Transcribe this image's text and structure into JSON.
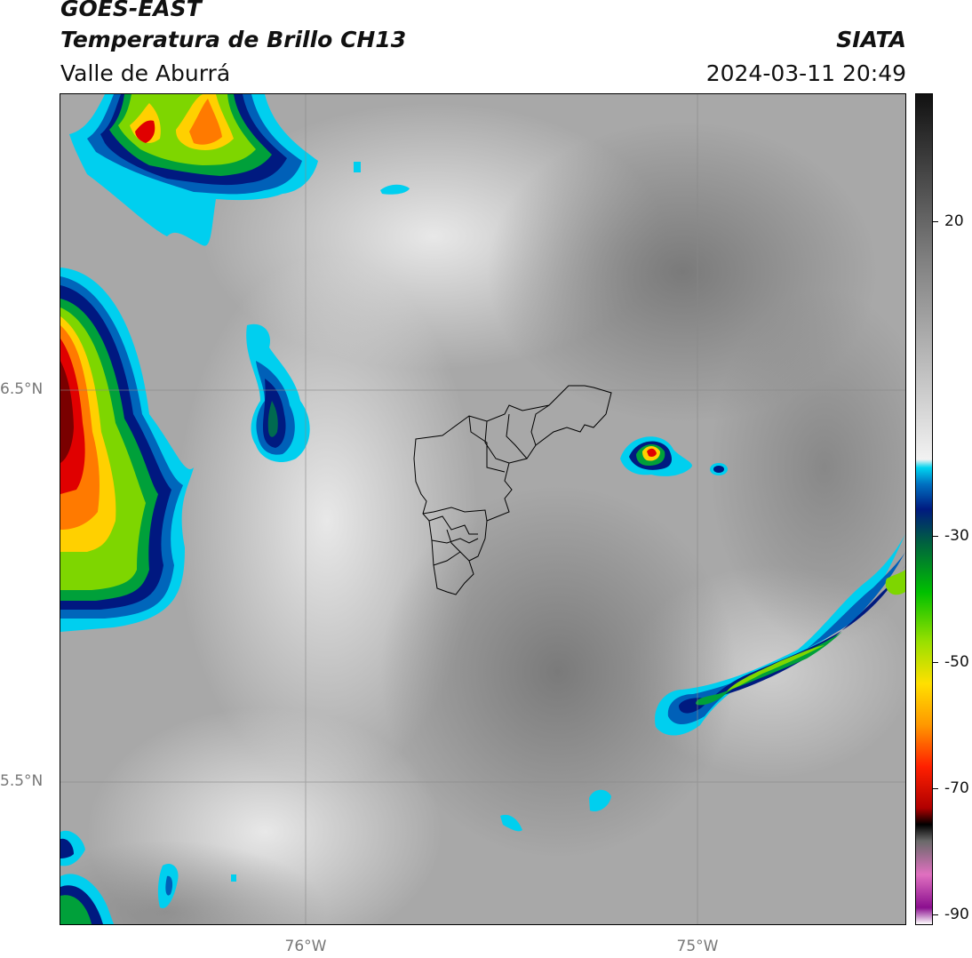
{
  "header": {
    "satellite": "GOES-EAST",
    "product": "Temperatura de Brillo CH13",
    "region": "Valle de Aburrá",
    "brand": "SIATA",
    "datetime": "2024-03-11 20:49"
  },
  "map": {
    "lat_labels": [
      "6.5°N",
      "5.5°N"
    ],
    "lon_labels": [
      "76°W",
      "75°W"
    ]
  },
  "colorbar": {
    "ticks": [
      "20",
      "-30",
      "-50",
      "-70",
      "-90"
    ],
    "colors": [
      "#ffffff",
      "#8b0f8f",
      "#e070c0",
      "#6a6a6a",
      "#000000",
      "#b00000",
      "#ff2000",
      "#ff9800",
      "#ffe000",
      "#9ae000",
      "#00c000",
      "#006040",
      "#001a80",
      "#0070c0",
      "#00d4f0",
      "#f2f2f2",
      "#808080",
      "#111111"
    ]
  }
}
